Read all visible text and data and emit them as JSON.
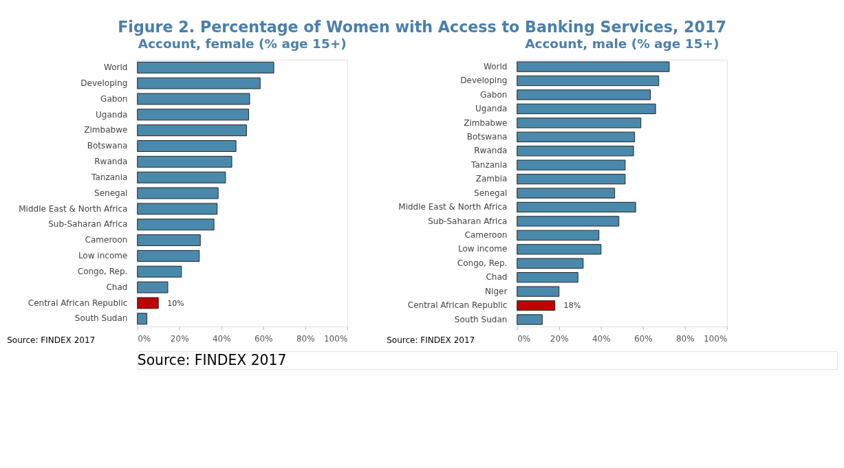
{
  "chart_data": [
    {
      "type": "other",
      "title": "Figure 2. Percentage of Women with Access to Banking Services, 2017",
      "annotations": [
        "Source: FINDEX 2017"
      ]
    },
    {
      "type": "bar",
      "orientation": "horizontal",
      "title": "Account, female (% age 15+)",
      "categories": [
        "World",
        "Developing",
        "Gabon",
        "Uganda",
        "Zimbabwe",
        "Botswana",
        "Rwanda",
        "Tanzania",
        "Senegal",
        "Middle East & North Africa",
        "Sub-Saharan Africa",
        "Cameroon",
        "Low income",
        "Congo, Rep.",
        "Chad",
        "Central African Republic",
        "South Sudan"
      ],
      "values": [
        65,
        58.5,
        53.5,
        53,
        52,
        47,
        45,
        42,
        38.5,
        38,
        36.5,
        30,
        29.5,
        21,
        14.5,
        10,
        4.5
      ],
      "colors": [
        "#4a89ab",
        "#4a89ab",
        "#4a89ab",
        "#4a89ab",
        "#4a89ab",
        "#4a89ab",
        "#4a89ab",
        "#4a89ab",
        "#4a89ab",
        "#4a89ab",
        "#4a89ab",
        "#4a89ab",
        "#4a89ab",
        "#4a89ab",
        "#4a89ab",
        "#c00000",
        "#4a89ab"
      ],
      "value_labels": [
        null,
        null,
        null,
        null,
        null,
        null,
        null,
        null,
        null,
        null,
        null,
        null,
        null,
        null,
        null,
        "10%",
        null
      ],
      "xlim": [
        0,
        100
      ],
      "xticks": [
        {
          "value": 0,
          "label": "0%"
        },
        {
          "value": 20,
          "label": "20%"
        },
        {
          "value": 40,
          "label": "40%"
        },
        {
          "value": 60,
          "label": "60%"
        },
        {
          "value": 80,
          "label": "80%"
        },
        {
          "value": 100,
          "label": "100%"
        }
      ],
      "annotations": [
        "Source: FINDEX 2017"
      ]
    },
    {
      "type": "bar",
      "orientation": "horizontal",
      "title": "Account, male (% age 15+)",
      "categories": [
        "World",
        "Developing",
        "Gabon",
        "Uganda",
        "Zimbabwe",
        "Botswana",
        "Rwanda",
        "Tanzania",
        "Zambia",
        "Senegal",
        "Middle East & North Africa",
        "Sub-Saharan Africa",
        "Cameroon",
        "Low income",
        "Congo, Rep.",
        "Chad",
        "Niger",
        "Central African Republic",
        "South Sudan"
      ],
      "values": [
        72.5,
        67.5,
        63.5,
        66,
        59,
        56,
        55.5,
        51.5,
        51.5,
        46.5,
        56.5,
        48.5,
        39,
        40,
        31.5,
        29,
        20,
        18,
        12
      ],
      "colors": [
        "#4a89ab",
        "#4a89ab",
        "#4a89ab",
        "#4a89ab",
        "#4a89ab",
        "#4a89ab",
        "#4a89ab",
        "#4a89ab",
        "#4a89ab",
        "#4a89ab",
        "#4a89ab",
        "#4a89ab",
        "#4a89ab",
        "#4a89ab",
        "#4a89ab",
        "#4a89ab",
        "#4a89ab",
        "#c00000",
        "#4a89ab"
      ],
      "value_labels": [
        null,
        null,
        null,
        null,
        null,
        null,
        null,
        null,
        null,
        null,
        null,
        null,
        null,
        null,
        null,
        null,
        null,
        "18%",
        null
      ],
      "xlim": [
        0,
        100
      ],
      "xticks": [
        {
          "value": 0,
          "label": "0%"
        },
        {
          "value": 20,
          "label": "20%"
        },
        {
          "value": 40,
          "label": "40%"
        },
        {
          "value": 60,
          "label": "60%"
        },
        {
          "value": 80,
          "label": "80%"
        },
        {
          "value": 100,
          "label": "100%"
        }
      ],
      "annotations": [
        "Source: FINDEX 2017"
      ]
    }
  ]
}
